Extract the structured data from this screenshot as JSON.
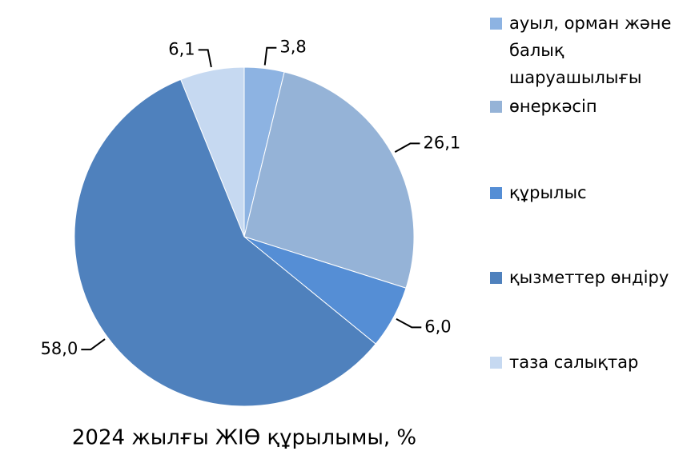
{
  "chart_data": {
    "type": "pie",
    "title": "2024 жылғы ЖІӨ құрылымы, %",
    "categories": [
      "ауыл, орман және балық шаруашылығы",
      "өнеркәсіп",
      "құрылыс",
      "қызметтер өндіру",
      "таза салықтар"
    ],
    "values": [
      3.8,
      26.1,
      6.0,
      58.0,
      6.1
    ],
    "value_labels": [
      "3,8",
      "26,1",
      "6,0",
      "58,0",
      "6,1"
    ],
    "colors": [
      "#8db3e2",
      "#95b3d7",
      "#558ed5",
      "#4f81bd",
      "#c6d9f1"
    ],
    "legend": "right"
  }
}
